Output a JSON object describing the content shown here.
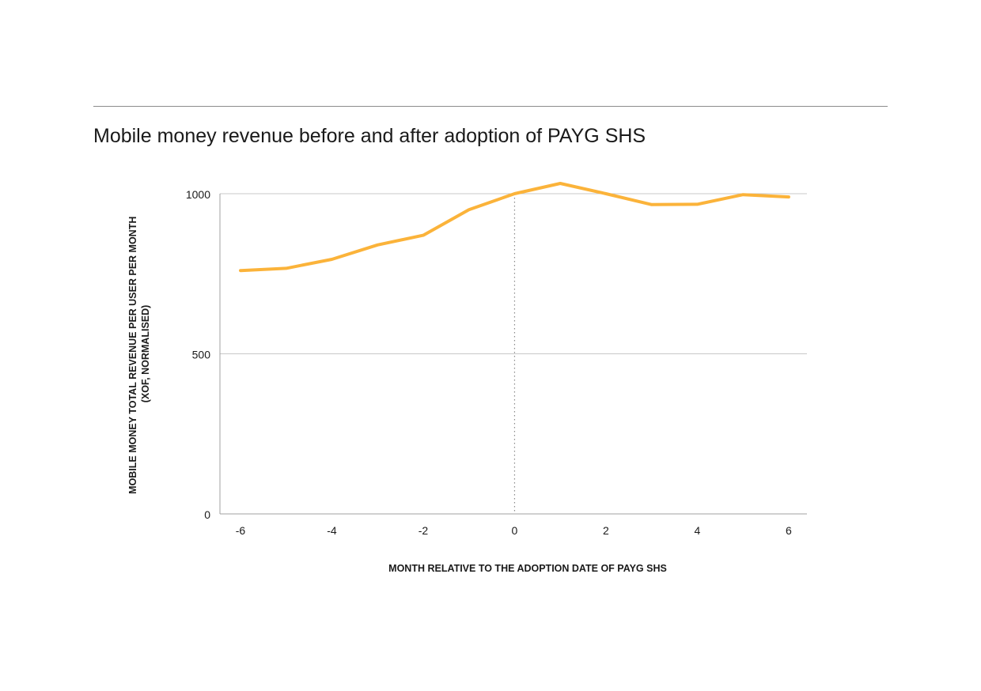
{
  "chart_data": {
    "type": "line",
    "title": "Mobile money revenue before and after adoption of PAYG SHS",
    "xlabel": "MONTH RELATIVE TO THE ADOPTION DATE OF PAYG SHS",
    "ylabel_lines": [
      "MOBILE MONEY TOTAL REVENUE PER USER PER MONTH",
      "(XOF, NORMALISED)"
    ],
    "x": [
      -6,
      -5,
      -4,
      -3,
      -2,
      -1,
      0,
      1,
      2,
      3,
      4,
      5,
      6
    ],
    "series": [
      {
        "values": [
          760,
          767,
          795,
          840,
          870,
          950,
          1000,
          1032,
          1000,
          966,
          967,
          997,
          990
        ],
        "color": "#fbb33a"
      }
    ],
    "xticks": [
      -6,
      -4,
      -2,
      0,
      2,
      4,
      6
    ],
    "xtick_labels": [
      "-6",
      "-4",
      "-2",
      "0",
      "2",
      "4",
      "6"
    ],
    "yticks": [
      0,
      500,
      1000
    ],
    "ytick_labels": [
      "0",
      "500",
      "1000"
    ],
    "xlim": [
      -6.45,
      6.4
    ],
    "ylim": [
      0,
      1000
    ],
    "reference_line_x": 0,
    "grid": "horizontal",
    "colors": {
      "line": "#fbb33a",
      "grid": "#c8c8c8",
      "axis": "#a0a0a0",
      "reference": "#8a8a8a"
    }
  }
}
